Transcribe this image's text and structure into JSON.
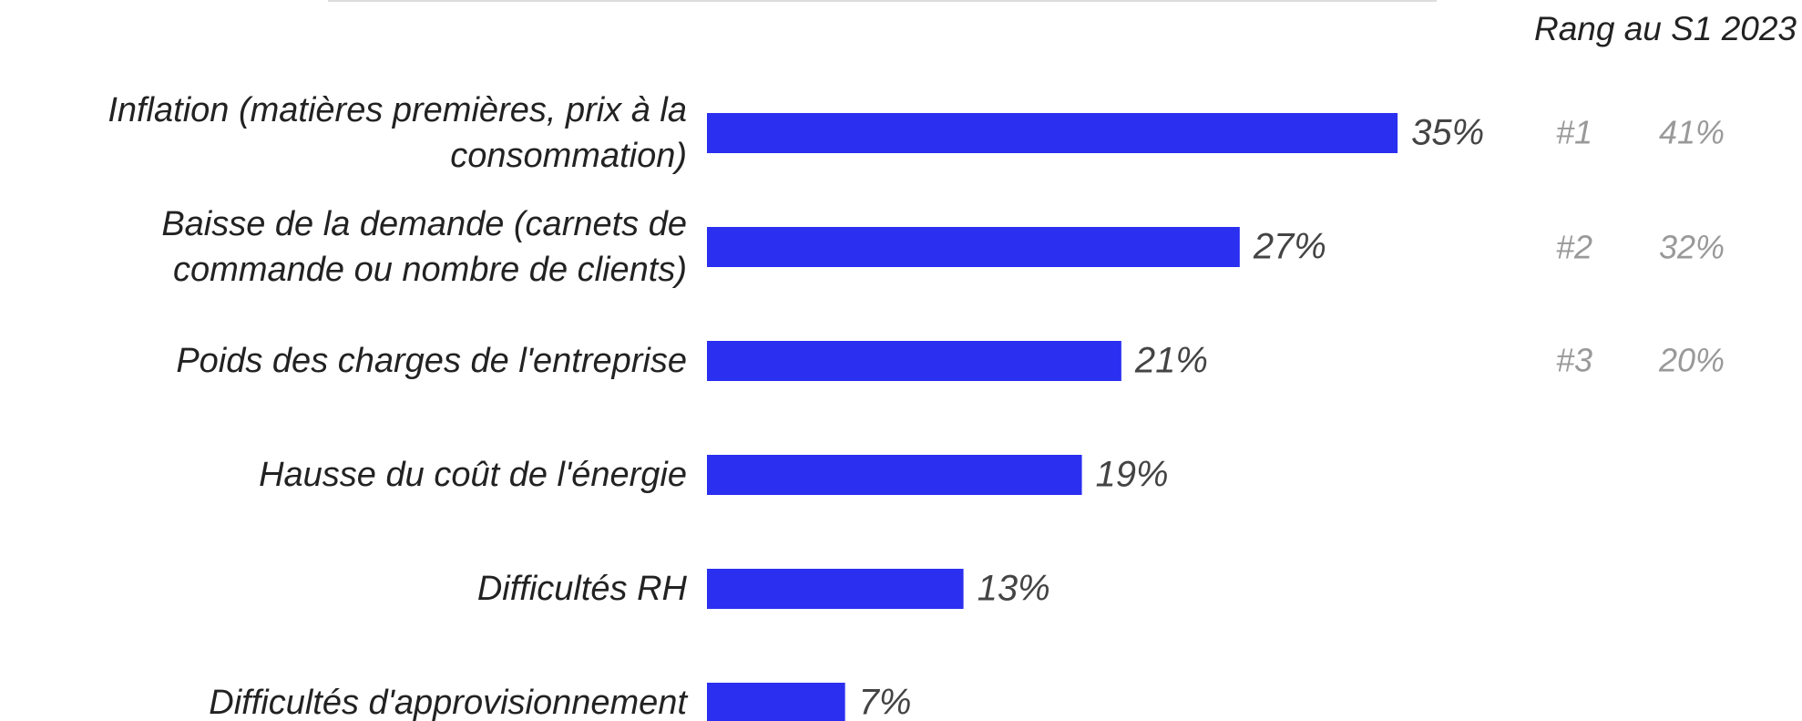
{
  "chart_data": {
    "type": "barh",
    "categories": [
      "Inflation (matières premières, prix à la\nconsommation)",
      "Baisse de la demande (carnets de\ncommande ou nombre de clients)",
      "Poids des charges de l'entreprise",
      "Hausse du coût de l'énergie",
      "Difficultés RH",
      "Difficultés d'approvisionnement"
    ],
    "values": [
      35,
      27,
      21,
      19,
      13,
      7
    ],
    "value_labels": [
      "35%",
      "27%",
      "21%",
      "19%",
      "13%",
      "7%"
    ],
    "color": "#2b2ff0",
    "rank_header": "Rang au S1 2023",
    "previous_ranks": [
      "#1",
      "#2",
      "#3"
    ],
    "previous_values": [
      41,
      32,
      20
    ],
    "previous_value_labels": [
      "41%",
      "32%",
      "20%"
    ]
  }
}
